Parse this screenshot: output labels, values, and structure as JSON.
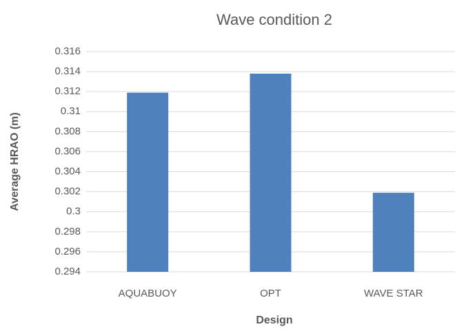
{
  "chart_data": {
    "type": "bar",
    "title": "Wave condition 2",
    "x_label": "Design",
    "y_label": "Average HRAO (m)",
    "categories": [
      "AQUABUOY",
      "OPT",
      "WAVE STAR"
    ],
    "values": [
      0.3119,
      0.3138,
      0.3019
    ],
    "color": "#4f81bd",
    "ylim": [
      0.294,
      0.316
    ],
    "yticks": [
      0.294,
      0.296,
      0.298,
      0.3,
      0.302,
      0.304,
      0.306,
      0.308,
      0.31,
      0.312,
      0.314,
      0.316
    ],
    "grid": true
  }
}
